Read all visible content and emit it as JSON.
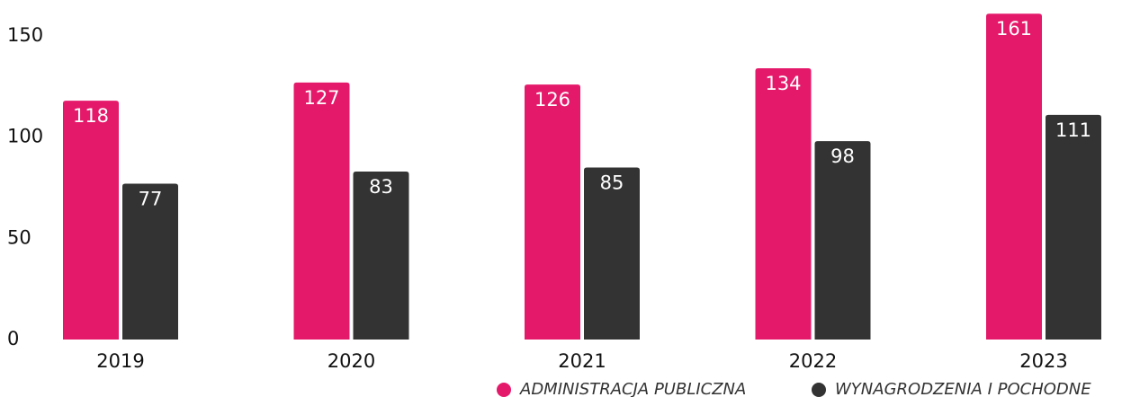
{
  "chart_data": {
    "type": "bar",
    "categories": [
      "2019",
      "2020",
      "2021",
      "2022",
      "2023"
    ],
    "series": [
      {
        "name": "ADMINISTRACJA PUBLICZNA",
        "color": "#e5196a",
        "values": [
          118,
          127,
          126,
          134,
          161
        ]
      },
      {
        "name": "WYNAGRODZENIA I POCHODNE",
        "color": "#333333",
        "values": [
          77,
          83,
          85,
          98,
          111
        ]
      }
    ],
    "ylim": [
      0,
      150
    ],
    "yticks": [
      0,
      50,
      100,
      150
    ],
    "grid": false,
    "legend": "bottom-right"
  }
}
